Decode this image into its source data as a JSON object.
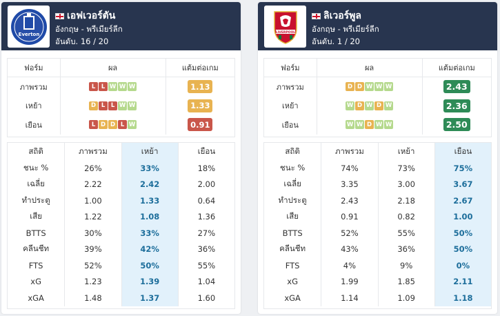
{
  "teams": [
    {
      "name": "เอฟเวอร์ตัน",
      "league": "อังกฤษ - พรีเมียร์ลีก",
      "rank": "อันดับ. 16 / 20",
      "crest_icon": "everton-crest",
      "form_headers": [
        "ฟอร์ม",
        "ผล",
        "แต้มต่อเกม"
      ],
      "form_rows": [
        {
          "label": "ภาพรวม",
          "results": [
            "L",
            "L",
            "W",
            "W",
            "W"
          ],
          "ppg": "1.13",
          "ppg_color": "#e8b351"
        },
        {
          "label": "เหย้า",
          "results": [
            "D",
            "L",
            "L",
            "W",
            "W"
          ],
          "ppg": "1.33",
          "ppg_color": "#e8b351"
        },
        {
          "label": "เยือน",
          "results": [
            "L",
            "D",
            "D",
            "L",
            "W"
          ],
          "ppg": "0.91",
          "ppg_color": "#c9564a"
        }
      ],
      "stats_headers": [
        "สถิติ",
        "ภาพรวม",
        "เหย้า",
        "เยือน"
      ],
      "stats_rows": [
        [
          "ชนะ %",
          "26%",
          "33%",
          "18%"
        ],
        [
          "เฉลี่ย",
          "2.22",
          "2.42",
          "2.00"
        ],
        [
          "ทำประตู",
          "1.00",
          "1.33",
          "0.64"
        ],
        [
          "เสีย",
          "1.22",
          "1.08",
          "1.36"
        ],
        [
          "BTTS",
          "30%",
          "33%",
          "27%"
        ],
        [
          "คลีนชีท",
          "39%",
          "42%",
          "36%"
        ],
        [
          "FTS",
          "52%",
          "50%",
          "55%"
        ],
        [
          "xG",
          "1.23",
          "1.39",
          "1.04"
        ],
        [
          "xGA",
          "1.48",
          "1.37",
          "1.60"
        ]
      ],
      "highlight_col": 2
    },
    {
      "name": "ลิเวอร์พูล",
      "league": "อังกฤษ - พรีเมียร์ลีก",
      "rank": "อันดับ. 1 / 20",
      "crest_icon": "liverpool-crest",
      "form_headers": [
        "ฟอร์ม",
        "ผล",
        "แต้มต่อเกม"
      ],
      "form_rows": [
        {
          "label": "ภาพรวม",
          "results": [
            "D",
            "D",
            "W",
            "W",
            "W"
          ],
          "ppg": "2.43",
          "ppg_color": "#2e8b57"
        },
        {
          "label": "เหย้า",
          "results": [
            "W",
            "D",
            "W",
            "D",
            "W"
          ],
          "ppg": "2.36",
          "ppg_color": "#2e8b57"
        },
        {
          "label": "เยือน",
          "results": [
            "W",
            "W",
            "D",
            "W",
            "W"
          ],
          "ppg": "2.50",
          "ppg_color": "#2e8b57"
        }
      ],
      "stats_headers": [
        "สถิติ",
        "ภาพรวม",
        "เหย้า",
        "เยือน"
      ],
      "stats_rows": [
        [
          "ชนะ %",
          "74%",
          "73%",
          "75%"
        ],
        [
          "เฉลี่ย",
          "3.35",
          "3.00",
          "3.67"
        ],
        [
          "ทำประตู",
          "2.43",
          "2.18",
          "2.67"
        ],
        [
          "เสีย",
          "0.91",
          "0.82",
          "1.00"
        ],
        [
          "BTTS",
          "52%",
          "55%",
          "50%"
        ],
        [
          "คลีนชีท",
          "43%",
          "36%",
          "50%"
        ],
        [
          "FTS",
          "4%",
          "9%",
          "0%"
        ],
        [
          "xG",
          "1.99",
          "1.85",
          "2.11"
        ],
        [
          "xGA",
          "1.14",
          "1.09",
          "1.18"
        ]
      ],
      "highlight_col": 3
    }
  ]
}
